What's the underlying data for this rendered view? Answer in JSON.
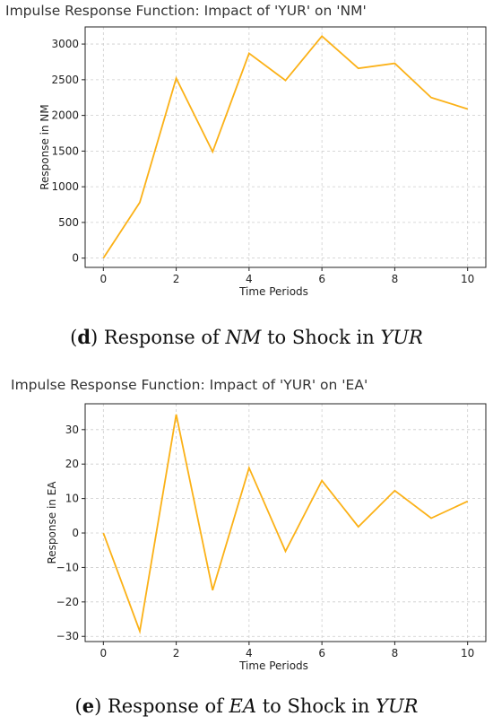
{
  "chart_data": [
    {
      "type": "line",
      "title": "Impulse Response Function: Impact of 'YUR' on 'NM'",
      "xlabel": "Time Periods",
      "ylabel": "Response in NM",
      "x": [
        0,
        1,
        2,
        3,
        4,
        5,
        6,
        7,
        8,
        9,
        10
      ],
      "series": [
        {
          "values": [
            0,
            780,
            2520,
            1490,
            2870,
            2490,
            3110,
            2660,
            2730,
            2250,
            2090
          ]
        }
      ],
      "xlim": [
        -0.5,
        10.5
      ],
      "ylim": [
        -130,
        3240
      ],
      "xticks": [
        0,
        2,
        4,
        6,
        8,
        10
      ],
      "yticks": [
        0,
        500,
        1000,
        1500,
        2000,
        2500,
        3000
      ],
      "grid": true,
      "color": "#FBB117"
    },
    {
      "type": "line",
      "title": "Impulse Response Function: Impact of 'YUR' on 'EA'",
      "xlabel": "Time Periods",
      "ylabel": "Response in EA",
      "x": [
        0,
        1,
        2,
        3,
        4,
        5,
        6,
        7,
        8,
        9,
        10
      ],
      "series": [
        {
          "values": [
            0,
            -28.5,
            34.4,
            -16.6,
            18.9,
            -5.3,
            15.2,
            1.8,
            12.3,
            4.3,
            9.2
          ]
        }
      ],
      "xlim": [
        -0.5,
        10.5
      ],
      "ylim": [
        -31.5,
        37.5
      ],
      "xticks": [
        0,
        2,
        4,
        6,
        8,
        10
      ],
      "yticks": [
        -30,
        -20,
        -10,
        0,
        10,
        20,
        30
      ],
      "grid": true,
      "color": "#FBB117"
    }
  ],
  "captions": [
    {
      "label": "d",
      "text_1": ") Response of ",
      "var1": "NM",
      "text_2": " to Shock in ",
      "var2": "YUR"
    },
    {
      "label": "e",
      "text_1": ") Response of ",
      "var1": "EA",
      "text_2": " to Shock in ",
      "var2": "YUR"
    }
  ]
}
